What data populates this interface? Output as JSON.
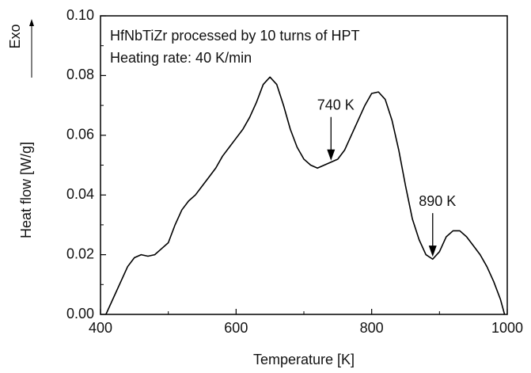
{
  "chart_data": {
    "type": "line",
    "color": "#000000",
    "xlabel": "Temperature [K]",
    "ylabel": "Heat flow [W/g]",
    "direction_label": "Exo",
    "text_box": [
      "HfNbTiZr processed by 10 turns of HPT",
      "Heating rate: 40 K/min"
    ],
    "x": [
      408,
      420,
      430,
      440,
      450,
      460,
      470,
      480,
      490,
      500,
      510,
      520,
      530,
      540,
      550,
      560,
      570,
      580,
      590,
      600,
      610,
      620,
      630,
      640,
      650,
      660,
      670,
      680,
      690,
      700,
      710,
      720,
      730,
      740,
      750,
      760,
      770,
      780,
      790,
      800,
      810,
      820,
      830,
      840,
      850,
      860,
      870,
      880,
      890,
      900,
      910,
      920,
      930,
      940,
      950,
      960,
      970,
      980,
      990,
      996
    ],
    "values": [
      0.0,
      0.006,
      0.011,
      0.016,
      0.019,
      0.02,
      0.0195,
      0.02,
      0.022,
      0.024,
      0.03,
      0.035,
      0.038,
      0.04,
      0.043,
      0.046,
      0.049,
      0.053,
      0.056,
      0.059,
      0.062,
      0.066,
      0.071,
      0.077,
      0.0795,
      0.077,
      0.07,
      0.062,
      0.056,
      0.052,
      0.05,
      0.049,
      0.05,
      0.051,
      0.052,
      0.055,
      0.06,
      0.065,
      0.07,
      0.074,
      0.0745,
      0.072,
      0.065,
      0.055,
      0.043,
      0.032,
      0.025,
      0.02,
      0.0185,
      0.021,
      0.026,
      0.028,
      0.028,
      0.026,
      0.023,
      0.02,
      0.016,
      0.011,
      0.005,
      0.0
    ],
    "annotations": [
      {
        "text": "740 K",
        "x": 740,
        "y": 0.051
      },
      {
        "text": "890 K",
        "x": 890,
        "y": 0.0188
      }
    ],
    "xlim": [
      400,
      1000
    ],
    "xticks": [
      400,
      600,
      800,
      1000
    ],
    "x_minor_ticks": [
      500,
      700,
      900
    ],
    "ylim": [
      0,
      0.1
    ],
    "yticks": [
      {
        "value": 0,
        "label": "0.00"
      },
      {
        "value": 0.02,
        "label": "0.02"
      },
      {
        "value": 0.04,
        "label": "0.04"
      },
      {
        "value": 0.06,
        "label": "0.06"
      },
      {
        "value": 0.08,
        "label": "0.08"
      },
      {
        "value": 0.1,
        "label": "0.10"
      }
    ],
    "y_minor_ticks": [
      0.01,
      0.03,
      0.05,
      0.07,
      0.09
    ],
    "grid": false
  }
}
